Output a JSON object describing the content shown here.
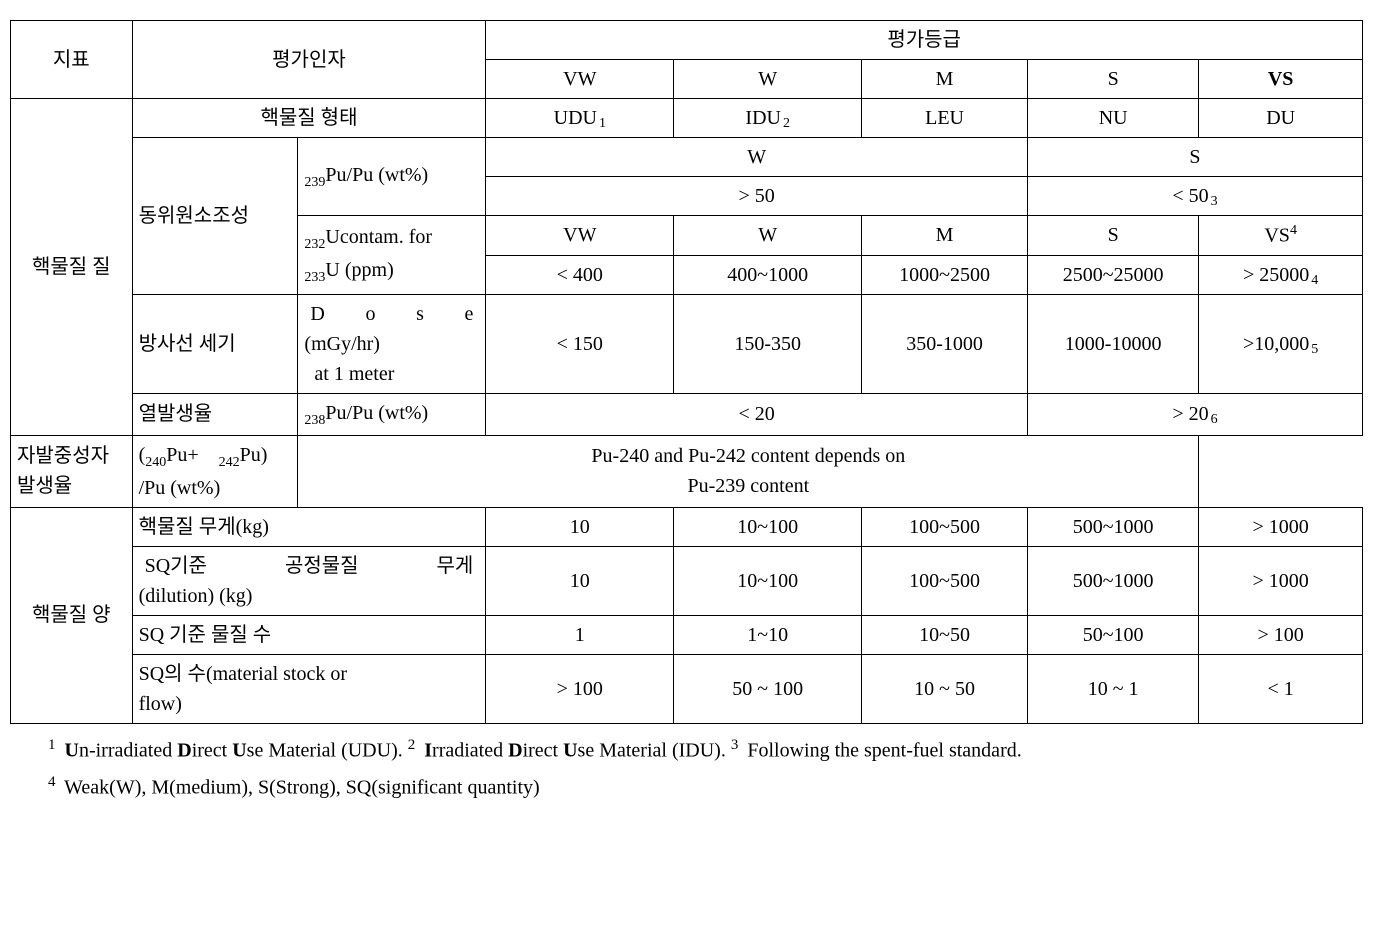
{
  "header": {
    "metric": "지표",
    "factor": "평가인자",
    "grade": "평가등급",
    "grade_cols": {
      "vw": "VW",
      "w": "W",
      "m": "M",
      "s": "S",
      "vs": "VS"
    }
  },
  "quality": {
    "row_label": "핵물질 질",
    "form": {
      "label": "핵물질 형태",
      "vw": "UDU",
      "vw_note": "1",
      "w": "IDU",
      "w_note": "2",
      "m": "LEU",
      "s": "NU",
      "vs": "DU"
    },
    "iso": {
      "label": "동위원소조성",
      "pu239": {
        "label_pre": "239",
        "label_main": "Pu/Pu (wt%)",
        "left_head": "W",
        "right_head": "S",
        "left_val": "> 50",
        "right_val": "< 50",
        "right_note": "3"
      },
      "u232": {
        "label_pre1": "232",
        "label_mid1": "Ucontam. for",
        "label_pre2": "233",
        "label_mid2": "U (ppm)",
        "heads": {
          "vw": "VW",
          "w": "W",
          "m": "M",
          "s": "S",
          "vs": "VS",
          "vs_sup": "4"
        },
        "vals": {
          "vw": "< 400",
          "w": "400~1000",
          "m": "1000~2500",
          "s": "2500~25000",
          "vs": "> 25000",
          "vs_note": "4"
        }
      }
    },
    "dose": {
      "label": "방사선 세기",
      "param_line1_pre": "D",
      "param_line1_mid": "o",
      "param_line1_mid2": "s",
      "param_line1_end": "e",
      "param_line1": "D o s e",
      "param_line2": "(mGy/hr)",
      "param_line3": "  at 1 meter",
      "vw": "< 150",
      "w": "150-350",
      "m": "350-1000",
      "s": "1000-10000",
      "vs": ">10,000",
      "vs_note": "5"
    },
    "heat": {
      "label": "열발생율",
      "param_pre": "238",
      "param_main": "Pu/Pu (wt%)",
      "left_val": "< 20",
      "right_val": "> 20",
      "right_note": "6"
    },
    "sf": {
      "label_l1": "자발중성자",
      "label_l2": "발생율",
      "param_l1_open": "(",
      "param_l1_a_pre": "240",
      "param_l1_a": "Pu+",
      "param_l1_b_pre": "242",
      "param_l1_b": "Pu)",
      "param_l2": "/Pu (wt%)",
      "text_l1": "Pu-240 and Pu-242 content depends on",
      "text_l2": "Pu-239 content"
    }
  },
  "quantity": {
    "row_label": "핵물질 양",
    "mass": {
      "label": "핵물질 무게(kg)",
      "vw": "10",
      "w": "10~100",
      "m": "100~500",
      "s": "500~1000",
      "vs": "> 1000"
    },
    "sqdil": {
      "label_l1": "SQ기준   공정물질   무게",
      "label_l2": "(dilution) (kg)",
      "vw": "10",
      "w": "10~100",
      "m": "100~500",
      "s": "500~1000",
      "vs": "> 1000"
    },
    "sqcnt": {
      "label": "SQ 기준 물질 수",
      "vw": "1",
      "w": "1~10",
      "m": "10~50",
      "s": "50~100",
      "vs": "> 100"
    },
    "sqflow": {
      "label_l1": "SQ의 수(material stock or",
      "label_l2": "flow)",
      "vw": "> 100",
      "w": "50 ~ 100",
      "m": "10 ~ 50",
      "s": "10 ~ 1",
      "vs": "< 1"
    }
  },
  "footnotes": {
    "n1_sup": "1",
    "n1_b1": "U",
    "n1_t1": "n-irradiated ",
    "n1_b2": "D",
    "n1_t2": "irect ",
    "n1_b3": "U",
    "n1_t3": "se Material (UDU). ",
    "n2_sup": "2",
    "n2_b1": "I",
    "n2_t1": "rradiated ",
    "n2_b2": "D",
    "n2_t2": "irect ",
    "n2_b3": "U",
    "n2_t3": "se Material (IDU). ",
    "n3_sup": "3",
    "n3_text": "Following the spent-fuel standard.",
    "n4_sup": "4",
    "n4_text": "Weak(W), M(medium), S(Strong), SQ(significant quantity)"
  },
  "colors": {
    "border": "#000000",
    "bg": "#ffffff",
    "text": "#000000"
  }
}
